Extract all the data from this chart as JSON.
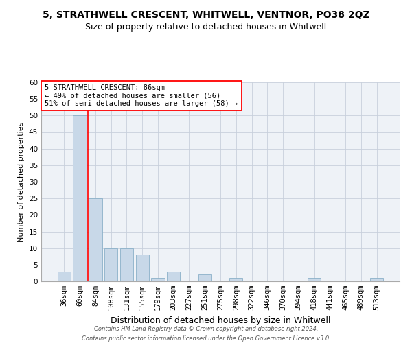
{
  "title": "5, STRATHWELL CRESCENT, WHITWELL, VENTNOR, PO38 2QZ",
  "subtitle": "Size of property relative to detached houses in Whitwell",
  "xlabel": "Distribution of detached houses by size in Whitwell",
  "ylabel": "Number of detached properties",
  "categories": [
    "36sqm",
    "60sqm",
    "84sqm",
    "108sqm",
    "131sqm",
    "155sqm",
    "179sqm",
    "203sqm",
    "227sqm",
    "251sqm",
    "275sqm",
    "298sqm",
    "322sqm",
    "346sqm",
    "370sqm",
    "394sqm",
    "418sqm",
    "441sqm",
    "465sqm",
    "489sqm",
    "513sqm"
  ],
  "values": [
    3,
    50,
    25,
    10,
    10,
    8,
    1,
    3,
    0,
    2,
    0,
    1,
    0,
    0,
    0,
    0,
    1,
    0,
    0,
    0,
    1
  ],
  "bar_color": "#c8d8e8",
  "bar_edge_color": "#8ab0c8",
  "ylim": [
    0,
    60
  ],
  "yticks": [
    0,
    5,
    10,
    15,
    20,
    25,
    30,
    35,
    40,
    45,
    50,
    55,
    60
  ],
  "red_line_x": 1.5,
  "annotation_line1": "5 STRATHWELL CRESCENT: 86sqm",
  "annotation_line2": "← 49% of detached houses are smaller (56)",
  "annotation_line3": "51% of semi-detached houses are larger (58) →",
  "footer1": "Contains HM Land Registry data © Crown copyright and database right 2024.",
  "footer2": "Contains public sector information licensed under the Open Government Licence v3.0.",
  "bg_color": "#eef2f7",
  "grid_color": "#c8d0dc",
  "title_fontsize": 10,
  "subtitle_fontsize": 9,
  "xlabel_fontsize": 9,
  "ylabel_fontsize": 8,
  "tick_fontsize": 7.5,
  "annotation_fontsize": 7.5,
  "footer_fontsize": 6
}
